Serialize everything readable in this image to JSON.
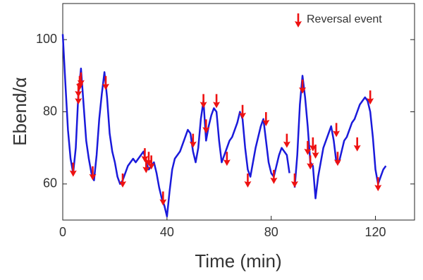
{
  "chart_data": {
    "type": "line",
    "xlabel": "Time (min)",
    "ylabel": "Ebend/α",
    "xlim": [
      0,
      135
    ],
    "ylim": [
      50,
      110
    ],
    "xticks": [
      0,
      40,
      80,
      120
    ],
    "yticks": [
      60,
      80,
      100
    ],
    "x": [
      0,
      1,
      2,
      3,
      4,
      5,
      6,
      7,
      8,
      9,
      10,
      11,
      12,
      13,
      14,
      15,
      16,
      17,
      18,
      19,
      20,
      21,
      22,
      23,
      24,
      25,
      26,
      27,
      28,
      29,
      30,
      31,
      32,
      33,
      34,
      35,
      36,
      37,
      38,
      39,
      40,
      41,
      42,
      43,
      44,
      45,
      46,
      47,
      48,
      49,
      50,
      51,
      52,
      53,
      54,
      55,
      56,
      57,
      58,
      59,
      60,
      61,
      62,
      63,
      64,
      65,
      66,
      67,
      68,
      69,
      70,
      71,
      72,
      73,
      74,
      75,
      76,
      77,
      78,
      79,
      80,
      81,
      82,
      83,
      84,
      85,
      86,
      87,
      88,
      89,
      90,
      91,
      92,
      93,
      94,
      95,
      96,
      97,
      98,
      99,
      100,
      101,
      102,
      103,
      104,
      105,
      106,
      107,
      108,
      109,
      110,
      111,
      112,
      113,
      114,
      115,
      116,
      117,
      118,
      119,
      120,
      121,
      122,
      123,
      124
    ],
    "series": [
      {
        "color": "#1a1adb",
        "values": [
          101.5,
          88,
          75,
          67,
          63,
          70,
          85,
          92,
          82,
          72,
          67,
          63,
          61,
          68,
          78,
          85,
          91,
          84,
          74,
          69,
          66,
          62,
          60,
          61,
          63,
          65,
          66,
          67,
          66,
          67,
          68,
          69,
          66,
          64,
          65,
          66,
          63,
          59,
          56,
          54,
          51,
          58,
          64,
          67,
          68,
          69,
          71,
          73,
          75,
          74,
          69,
          66,
          70,
          78,
          83,
          72,
          76,
          79,
          81,
          80,
          72,
          66,
          68,
          70,
          72,
          73,
          75,
          77,
          80,
          78,
          70,
          64,
          62,
          66,
          70,
          73,
          76,
          78,
          72,
          66,
          63,
          62,
          65,
          68,
          70,
          69,
          68,
          63,
          null,
          59,
          68,
          82,
          90,
          84,
          76,
          66,
          65,
          56,
          62,
          66,
          70,
          72,
          74,
          76,
          72,
          66,
          66,
          69,
          72,
          73,
          75,
          77,
          78,
          80,
          82,
          83,
          84,
          83,
          80,
          73,
          64,
          60,
          62,
          64,
          65
        ]
      },
      {
        "name": "Reversal event",
        "color": "#ee1111",
        "marker": "arrow",
        "x": [
          4,
          6,
          6.5,
          6,
          7,
          11.5,
          16.5,
          23,
          31.5,
          32,
          33,
          34,
          38.5,
          50,
          54,
          55,
          59,
          63,
          69,
          71,
          78,
          81,
          86,
          89,
          92,
          94,
          95,
          96,
          97,
          105,
          105.5,
          113,
          118,
          121
        ],
        "values": [
          62,
          84,
          86,
          82,
          87,
          61,
          86,
          59,
          66,
          63,
          65,
          64,
          54,
          70,
          81,
          74,
          81,
          65,
          78,
          59,
          76,
          60,
          70,
          59,
          85,
          68,
          64,
          69,
          67,
          73,
          65,
          69,
          82,
          58
        ]
      }
    ],
    "legend": "upper right"
  }
}
